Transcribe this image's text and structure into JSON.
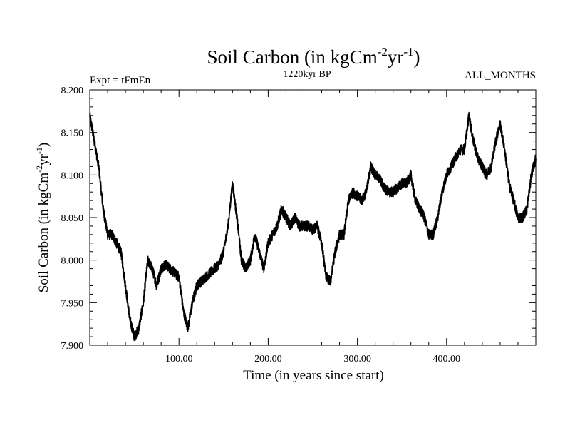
{
  "chart_data": {
    "type": "line",
    "title": {
      "main": "Soil Carbon (in kgCm",
      "sup1": "-2",
      "mid": "yr",
      "sup2": "-1",
      "end": ")"
    },
    "subtitle_left": "Expt = tFmEn",
    "subtitle_center": "1220kyr BP",
    "subtitle_right": "ALL_MONTHS",
    "xlabel": "Time (in years since start)",
    "ylabel": {
      "main": "Soil Carbon (in kgCm",
      "sup1": "-2",
      "mid": "yr",
      "sup2": "-1",
      "end": ")"
    },
    "xlim": [
      0,
      500
    ],
    "ylim": [
      7.9,
      8.2
    ],
    "x_ticks": [
      {
        "value": 100,
        "label": "100.00"
      },
      {
        "value": 200,
        "label": "200.00"
      },
      {
        "value": 300,
        "label": "300.00"
      },
      {
        "value": 400,
        "label": "400.00"
      }
    ],
    "y_ticks": [
      {
        "value": 7.9,
        "label": "7.900"
      },
      {
        "value": 7.95,
        "label": "7.950"
      },
      {
        "value": 8.0,
        "label": "8.000"
      },
      {
        "value": 8.05,
        "label": "8.050"
      },
      {
        "value": 8.1,
        "label": "8.100"
      },
      {
        "value": 8.15,
        "label": "8.150"
      },
      {
        "value": 8.2,
        "label": "8.200"
      }
    ],
    "series": [
      {
        "name": "Soil Carbon",
        "noise_amplitude": 0.006,
        "points": [
          [
            0,
            8.17
          ],
          [
            5,
            8.14
          ],
          [
            10,
            8.11
          ],
          [
            15,
            8.06
          ],
          [
            20,
            8.03
          ],
          [
            25,
            8.03
          ],
          [
            30,
            8.02
          ],
          [
            35,
            8.01
          ],
          [
            40,
            7.97
          ],
          [
            45,
            7.93
          ],
          [
            50,
            7.91
          ],
          [
            55,
            7.92
          ],
          [
            60,
            7.95
          ],
          [
            65,
            8.0
          ],
          [
            70,
            7.99
          ],
          [
            75,
            7.97
          ],
          [
            80,
            7.99
          ],
          [
            85,
            7.995
          ],
          [
            90,
            7.99
          ],
          [
            95,
            7.985
          ],
          [
            100,
            7.98
          ],
          [
            105,
            7.94
          ],
          [
            110,
            7.92
          ],
          [
            115,
            7.95
          ],
          [
            120,
            7.97
          ],
          [
            125,
            7.975
          ],
          [
            130,
            7.98
          ],
          [
            135,
            7.985
          ],
          [
            140,
            7.99
          ],
          [
            145,
            7.995
          ],
          [
            150,
            8.01
          ],
          [
            155,
            8.04
          ],
          [
            160,
            8.09
          ],
          [
            165,
            8.05
          ],
          [
            170,
            8.0
          ],
          [
            175,
            7.99
          ],
          [
            180,
            8.0
          ],
          [
            185,
            8.03
          ],
          [
            190,
            8.01
          ],
          [
            195,
            7.99
          ],
          [
            200,
            8.02
          ],
          [
            205,
            8.03
          ],
          [
            210,
            8.04
          ],
          [
            215,
            8.06
          ],
          [
            220,
            8.05
          ],
          [
            225,
            8.04
          ],
          [
            230,
            8.05
          ],
          [
            235,
            8.04
          ],
          [
            240,
            8.04
          ],
          [
            245,
            8.04
          ],
          [
            250,
            8.035
          ],
          [
            255,
            8.04
          ],
          [
            260,
            8.02
          ],
          [
            265,
            7.98
          ],
          [
            270,
            7.975
          ],
          [
            275,
            8.01
          ],
          [
            280,
            8.03
          ],
          [
            285,
            8.03
          ],
          [
            290,
            8.07
          ],
          [
            295,
            8.08
          ],
          [
            300,
            8.075
          ],
          [
            305,
            8.07
          ],
          [
            310,
            8.08
          ],
          [
            315,
            8.11
          ],
          [
            320,
            8.1
          ],
          [
            325,
            8.095
          ],
          [
            330,
            8.085
          ],
          [
            335,
            8.08
          ],
          [
            340,
            8.08
          ],
          [
            345,
            8.085
          ],
          [
            350,
            8.09
          ],
          [
            355,
            8.09
          ],
          [
            360,
            8.1
          ],
          [
            365,
            8.07
          ],
          [
            370,
            8.06
          ],
          [
            375,
            8.05
          ],
          [
            380,
            8.03
          ],
          [
            385,
            8.03
          ],
          [
            390,
            8.05
          ],
          [
            395,
            8.08
          ],
          [
            400,
            8.1
          ],
          [
            405,
            8.11
          ],
          [
            410,
            8.12
          ],
          [
            415,
            8.13
          ],
          [
            420,
            8.13
          ],
          [
            425,
            8.17
          ],
          [
            430,
            8.14
          ],
          [
            435,
            8.12
          ],
          [
            440,
            8.11
          ],
          [
            445,
            8.1
          ],
          [
            450,
            8.11
          ],
          [
            455,
            8.14
          ],
          [
            460,
            8.16
          ],
          [
            465,
            8.13
          ],
          [
            470,
            8.09
          ],
          [
            475,
            8.07
          ],
          [
            480,
            8.05
          ],
          [
            485,
            8.05
          ],
          [
            490,
            8.06
          ],
          [
            495,
            8.1
          ],
          [
            500,
            8.12
          ]
        ]
      }
    ]
  }
}
